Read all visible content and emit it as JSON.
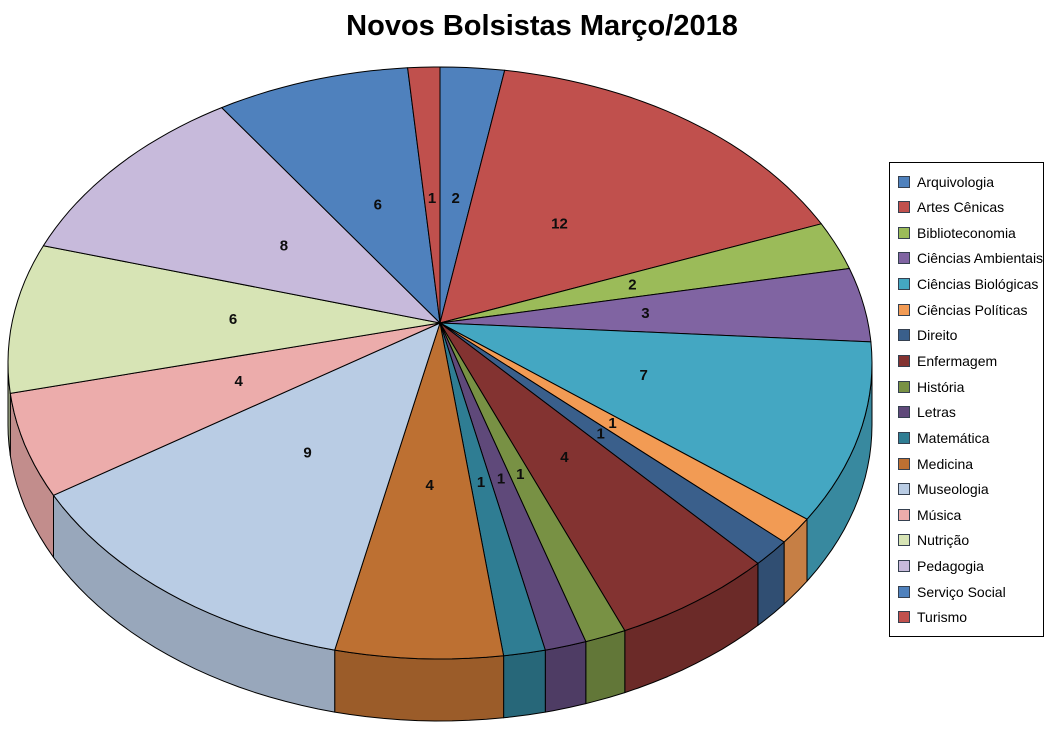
{
  "chart_data": {
    "type": "pie",
    "style": "3d",
    "title": "Novos Bolsistas Março/2018",
    "legend_position": "right",
    "start_angle_deg": 0,
    "direction": "clockwise",
    "data_labels": "value",
    "total": 73,
    "categories": [
      "Arquivologia",
      "Artes Cênicas",
      "Biblioteconomia",
      "Ciências Ambientais",
      "Ciências Biológicas",
      "Ciências Políticas",
      "Direito",
      "Enfermagem",
      "História",
      "Letras",
      "Matemática",
      "Medicina",
      "Museologia",
      "Música",
      "Nutrição",
      "Pedagogia",
      "Serviço Social",
      "Turismo"
    ],
    "values": [
      2,
      12,
      2,
      3,
      7,
      1,
      1,
      4,
      1,
      1,
      1,
      4,
      9,
      4,
      6,
      8,
      6,
      1
    ],
    "colors": [
      "#4F81BD",
      "#C0504D",
      "#9BBB59",
      "#8064A2",
      "#44A7C2",
      "#F29B54",
      "#3A5F8B",
      "#833331",
      "#789144",
      "#5F497A",
      "#2F7D93",
      "#BD7032",
      "#B9CCE4",
      "#ECACAB",
      "#D7E4B5",
      "#C7BADB",
      "#4F81BD",
      "#C0504D"
    ]
  }
}
